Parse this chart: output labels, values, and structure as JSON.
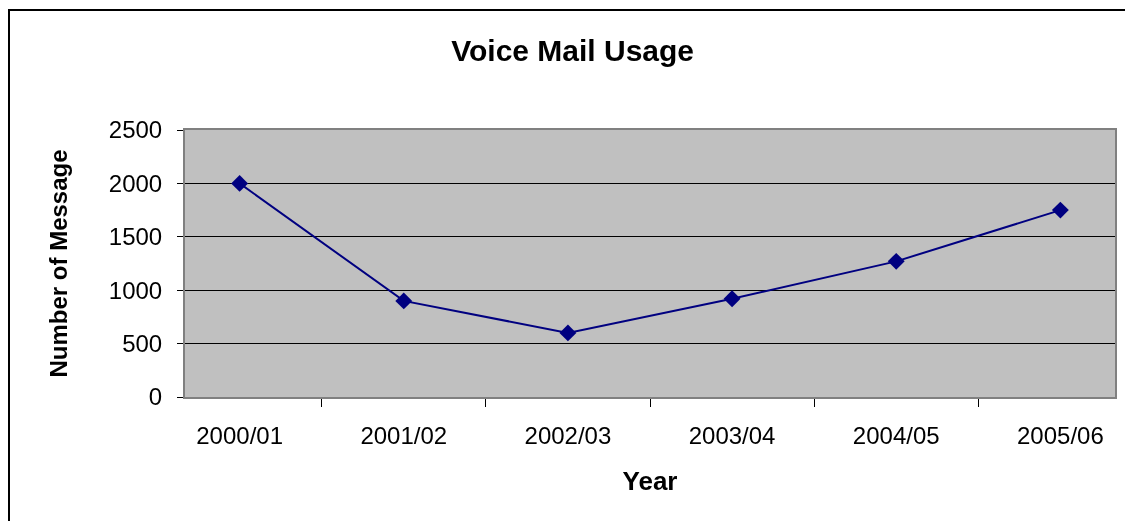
{
  "chart_data": {
    "type": "line",
    "title": "Voice Mail Usage",
    "xlabel": "Year",
    "ylabel": "Number of Message",
    "categories": [
      "2000/01",
      "2001/02",
      "2002/03",
      "2003/04",
      "2004/05",
      "2005/06"
    ],
    "series": [
      {
        "color": "#000080",
        "values": [
          2000,
          900,
          600,
          920,
          1270,
          1750
        ]
      }
    ],
    "ylim": [
      0,
      2500
    ],
    "yticks": [
      0,
      500,
      1000,
      1500,
      2000,
      2500
    ],
    "grid": "y",
    "marker": "diamond",
    "line_style": "solid"
  }
}
